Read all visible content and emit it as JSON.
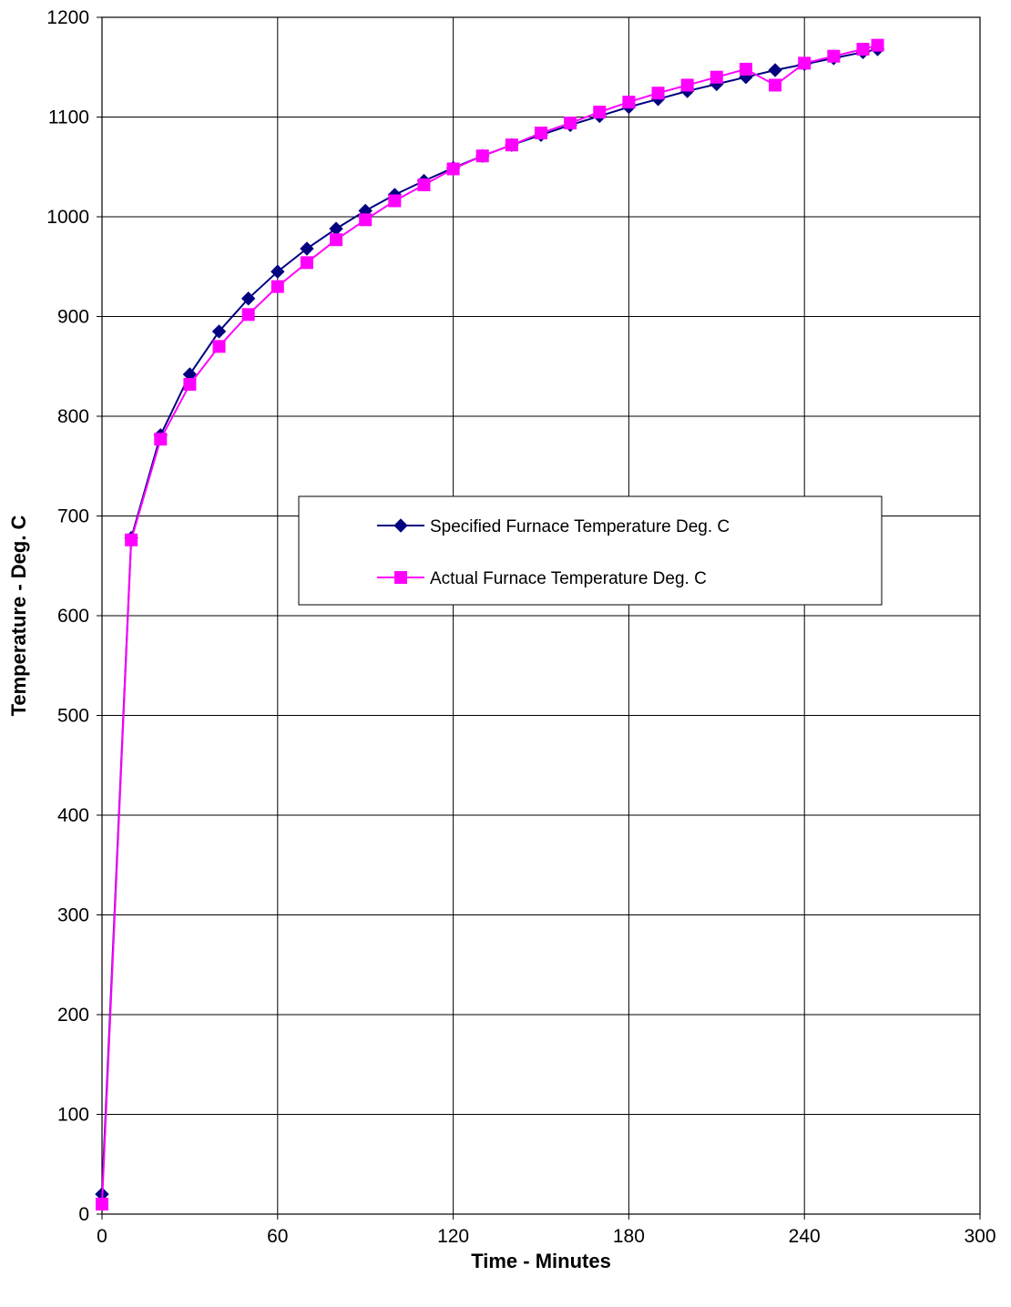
{
  "chart_data": {
    "type": "line",
    "xlabel": "Time - Minutes",
    "ylabel": "Temperature - Deg. C",
    "xlim": [
      0,
      300
    ],
    "ylim": [
      0,
      1200
    ],
    "xticks": [
      "0",
      "60",
      "120",
      "180",
      "240",
      "300"
    ],
    "yticks": [
      "0",
      "100",
      "200",
      "300",
      "400",
      "500",
      "600",
      "700",
      "800",
      "900",
      "1000",
      "1100",
      "1200"
    ],
    "grid": true,
    "legend_position": "center",
    "series": [
      {
        "name": "Specified Furnace Temperature Deg. C",
        "color": "#000080",
        "marker": "diamond",
        "x": [
          0,
          10,
          20,
          30,
          40,
          50,
          60,
          70,
          80,
          90,
          100,
          110,
          120,
          130,
          140,
          150,
          160,
          170,
          180,
          190,
          200,
          210,
          220,
          230,
          240,
          250,
          260,
          265
        ],
        "y": [
          20,
          678,
          781,
          842,
          885,
          918,
          945,
          968,
          988,
          1006,
          1022,
          1036,
          1049,
          1061,
          1072,
          1082,
          1092,
          1101,
          1110,
          1118,
          1126,
          1133,
          1140,
          1147,
          1153,
          1159,
          1165,
          1168
        ]
      },
      {
        "name": "Actual Furnace Temperature Deg. C",
        "color": "#ff00ff",
        "marker": "square",
        "x": [
          0,
          10,
          20,
          30,
          40,
          50,
          60,
          70,
          80,
          90,
          100,
          110,
          120,
          130,
          140,
          150,
          160,
          170,
          180,
          190,
          200,
          210,
          220,
          230,
          240,
          250,
          260,
          265
        ],
        "y": [
          10,
          676,
          777,
          832,
          870,
          902,
          930,
          954,
          977,
          997,
          1016,
          1032,
          1048,
          1061,
          1072,
          1084,
          1094,
          1105,
          1115,
          1124,
          1132,
          1140,
          1148,
          1132,
          1154,
          1161,
          1168,
          1172
        ]
      }
    ]
  }
}
